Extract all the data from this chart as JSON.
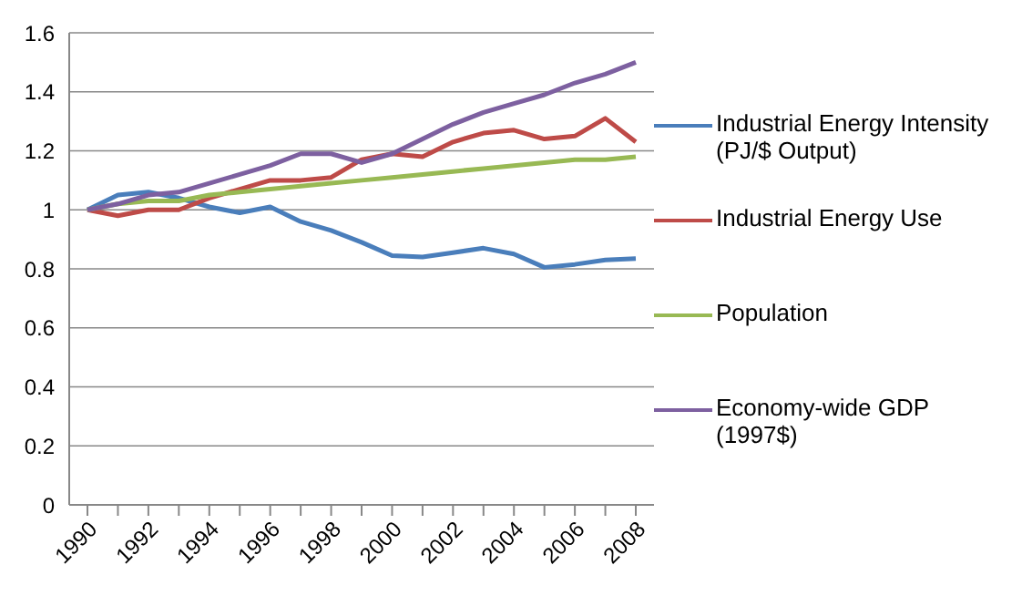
{
  "chart_data": {
    "type": "line",
    "categories": [
      "1990",
      null,
      "1992",
      null,
      "1994",
      null,
      "1996",
      null,
      "1998",
      null,
      "2000",
      null,
      "2002",
      null,
      "2004",
      null,
      "2006",
      null,
      "2008"
    ],
    "ylim": [
      0,
      1.6
    ],
    "yticks": [
      0,
      0.2,
      0.4,
      0.6,
      0.8,
      1,
      1.2,
      1.4,
      1.6
    ],
    "grid": "y",
    "legend": "right",
    "marker": "none",
    "series": [
      {
        "name": "Industrial Energy Intensity (PJ/$ Output)",
        "color": "#4a7ebb",
        "values": [
          1.0,
          1.05,
          1.06,
          1.04,
          1.01,
          0.99,
          1.01,
          0.96,
          0.93,
          0.89,
          0.845,
          0.84,
          0.855,
          0.87,
          0.85,
          0.805,
          0.815,
          0.83,
          0.835
        ]
      },
      {
        "name": "Industrial Energy Use",
        "color": "#be4b48",
        "values": [
          1.0,
          0.98,
          1.0,
          1.0,
          1.04,
          1.07,
          1.1,
          1.1,
          1.11,
          1.17,
          1.19,
          1.18,
          1.23,
          1.26,
          1.27,
          1.24,
          1.25,
          1.31,
          1.23
        ]
      },
      {
        "name": "Population",
        "color": "#98b954",
        "values": [
          1.0,
          1.02,
          1.03,
          1.03,
          1.05,
          1.06,
          1.07,
          1.08,
          1.09,
          1.1,
          1.11,
          1.12,
          1.13,
          1.14,
          1.15,
          1.16,
          1.17,
          1.17,
          1.18
        ]
      },
      {
        "name": "Economy-wide GDP (1997$)",
        "color": "#7d60a0",
        "values": [
          1.0,
          1.02,
          1.05,
          1.06,
          1.09,
          1.12,
          1.15,
          1.19,
          1.19,
          1.16,
          1.19,
          1.24,
          1.29,
          1.33,
          1.36,
          1.39,
          1.43,
          1.46,
          1.5
        ]
      }
    ]
  }
}
